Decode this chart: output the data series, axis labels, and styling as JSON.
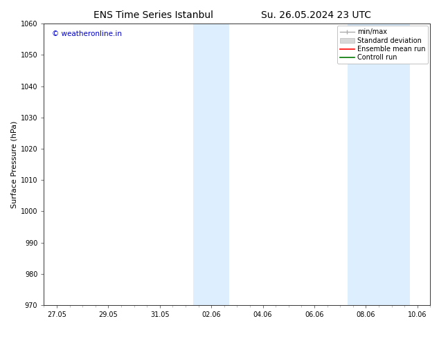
{
  "title_left": "ENS Time Series Istanbul",
  "title_right": "Su. 26.05.2024 23 UTC",
  "ylabel": "Surface Pressure (hPa)",
  "ylim": [
    970,
    1060
  ],
  "yticks": [
    970,
    980,
    990,
    1000,
    1010,
    1020,
    1030,
    1040,
    1050,
    1060
  ],
  "xtick_labels": [
    "27.05",
    "29.05",
    "31.05",
    "02.06",
    "04.06",
    "06.06",
    "08.06",
    "10.06"
  ],
  "xtick_positions": [
    0,
    2,
    4,
    6,
    8,
    10,
    12,
    14
  ],
  "xlim": [
    -0.5,
    14.5
  ],
  "watermark": "© weatheronline.in",
  "watermark_color": "#0000cc",
  "bg_color": "#ffffff",
  "shaded_regions": [
    {
      "x_start": 5.3,
      "x_end": 6.7,
      "color": "#ddeeff"
    },
    {
      "x_start": 11.3,
      "x_end": 13.7,
      "color": "#ddeeff"
    }
  ],
  "legend_items": [
    {
      "label": "min/max",
      "color": "#aaaaaa"
    },
    {
      "label": "Standard deviation",
      "color": "#d0dde8"
    },
    {
      "label": "Ensemble mean run",
      "color": "#ff0000"
    },
    {
      "label": "Controll run",
      "color": "#007700"
    }
  ],
  "title_fontsize": 10,
  "tick_fontsize": 7,
  "ylabel_fontsize": 8,
  "legend_fontsize": 7,
  "watermark_fontsize": 7.5
}
